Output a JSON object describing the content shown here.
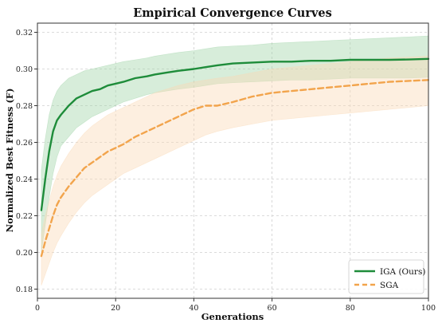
{
  "chart_data": {
    "type": "line",
    "title": "Empirical Convergence Curves",
    "xlabel": "Generations",
    "ylabel": "Normalized Best Fitness (F)",
    "xlim": [
      0,
      100
    ],
    "ylim": [
      0.175,
      0.325
    ],
    "xticks": [
      0,
      20,
      40,
      60,
      80,
      100
    ],
    "yticks": [
      0.18,
      0.2,
      0.22,
      0.24,
      0.26,
      0.28,
      0.3,
      0.32
    ],
    "ytick_labels": [
      "0.18",
      "0.20",
      "0.22",
      "0.24",
      "0.26",
      "0.28",
      "0.30",
      "0.32"
    ],
    "grid": true,
    "legend": "bottom-right",
    "series": [
      {
        "name": "IGA (Ours)",
        "color": "#1e8c3a",
        "band_color": "#9fd3a8",
        "style": "solid",
        "x": [
          1,
          2,
          3,
          4,
          5,
          6,
          8,
          10,
          12,
          14,
          16,
          18,
          20,
          22,
          25,
          28,
          30,
          33,
          36,
          40,
          43,
          46,
          50,
          55,
          60,
          65,
          70,
          75,
          80,
          85,
          90,
          95,
          100
        ],
        "mean": [
          0.223,
          0.24,
          0.255,
          0.266,
          0.272,
          0.275,
          0.28,
          0.284,
          0.286,
          0.288,
          0.289,
          0.291,
          0.292,
          0.293,
          0.295,
          0.296,
          0.297,
          0.298,
          0.299,
          0.3,
          0.301,
          0.302,
          0.303,
          0.3035,
          0.304,
          0.304,
          0.3045,
          0.3045,
          0.305,
          0.305,
          0.305,
          0.3052,
          0.3055
        ],
        "upper": [
          0.245,
          0.262,
          0.275,
          0.283,
          0.288,
          0.291,
          0.295,
          0.297,
          0.299,
          0.3,
          0.301,
          0.302,
          0.303,
          0.304,
          0.305,
          0.306,
          0.307,
          0.308,
          0.309,
          0.31,
          0.311,
          0.312,
          0.3125,
          0.313,
          0.314,
          0.3145,
          0.315,
          0.3155,
          0.316,
          0.3165,
          0.317,
          0.3175,
          0.318
        ],
        "lower": [
          0.2,
          0.215,
          0.23,
          0.243,
          0.252,
          0.258,
          0.263,
          0.268,
          0.271,
          0.274,
          0.276,
          0.278,
          0.28,
          0.282,
          0.284,
          0.286,
          0.287,
          0.288,
          0.289,
          0.29,
          0.291,
          0.292,
          0.2925,
          0.293,
          0.2935,
          0.294,
          0.294,
          0.2945,
          0.295,
          0.295,
          0.295,
          0.295,
          0.2955
        ]
      },
      {
        "name": "SGA",
        "color": "#f2a44c",
        "band_color": "#fbd9b5",
        "style": "dashed",
        "x": [
          1,
          2,
          3,
          4,
          5,
          6,
          8,
          10,
          12,
          14,
          16,
          18,
          20,
          22,
          25,
          28,
          30,
          33,
          36,
          40,
          43,
          46,
          50,
          55,
          60,
          65,
          70,
          75,
          80,
          85,
          90,
          95,
          100
        ],
        "mean": [
          0.198,
          0.206,
          0.213,
          0.22,
          0.226,
          0.23,
          0.236,
          0.241,
          0.246,
          0.249,
          0.252,
          0.255,
          0.257,
          0.259,
          0.263,
          0.266,
          0.268,
          0.271,
          0.274,
          0.278,
          0.28,
          0.28,
          0.282,
          0.285,
          0.287,
          0.288,
          0.289,
          0.29,
          0.291,
          0.292,
          0.293,
          0.2935,
          0.294
        ],
        "upper": [
          0.21,
          0.22,
          0.228,
          0.236,
          0.242,
          0.247,
          0.254,
          0.26,
          0.265,
          0.269,
          0.272,
          0.275,
          0.277,
          0.279,
          0.282,
          0.285,
          0.287,
          0.289,
          0.291,
          0.293,
          0.294,
          0.295,
          0.296,
          0.298,
          0.3,
          0.301,
          0.302,
          0.303,
          0.304,
          0.305,
          0.306,
          0.3065,
          0.307
        ],
        "lower": [
          0.182,
          0.188,
          0.194,
          0.2,
          0.205,
          0.209,
          0.216,
          0.222,
          0.227,
          0.231,
          0.234,
          0.237,
          0.24,
          0.243,
          0.246,
          0.249,
          0.251,
          0.254,
          0.257,
          0.261,
          0.264,
          0.266,
          0.268,
          0.27,
          0.272,
          0.273,
          0.274,
          0.275,
          0.276,
          0.277,
          0.278,
          0.279,
          0.28
        ]
      }
    ]
  }
}
